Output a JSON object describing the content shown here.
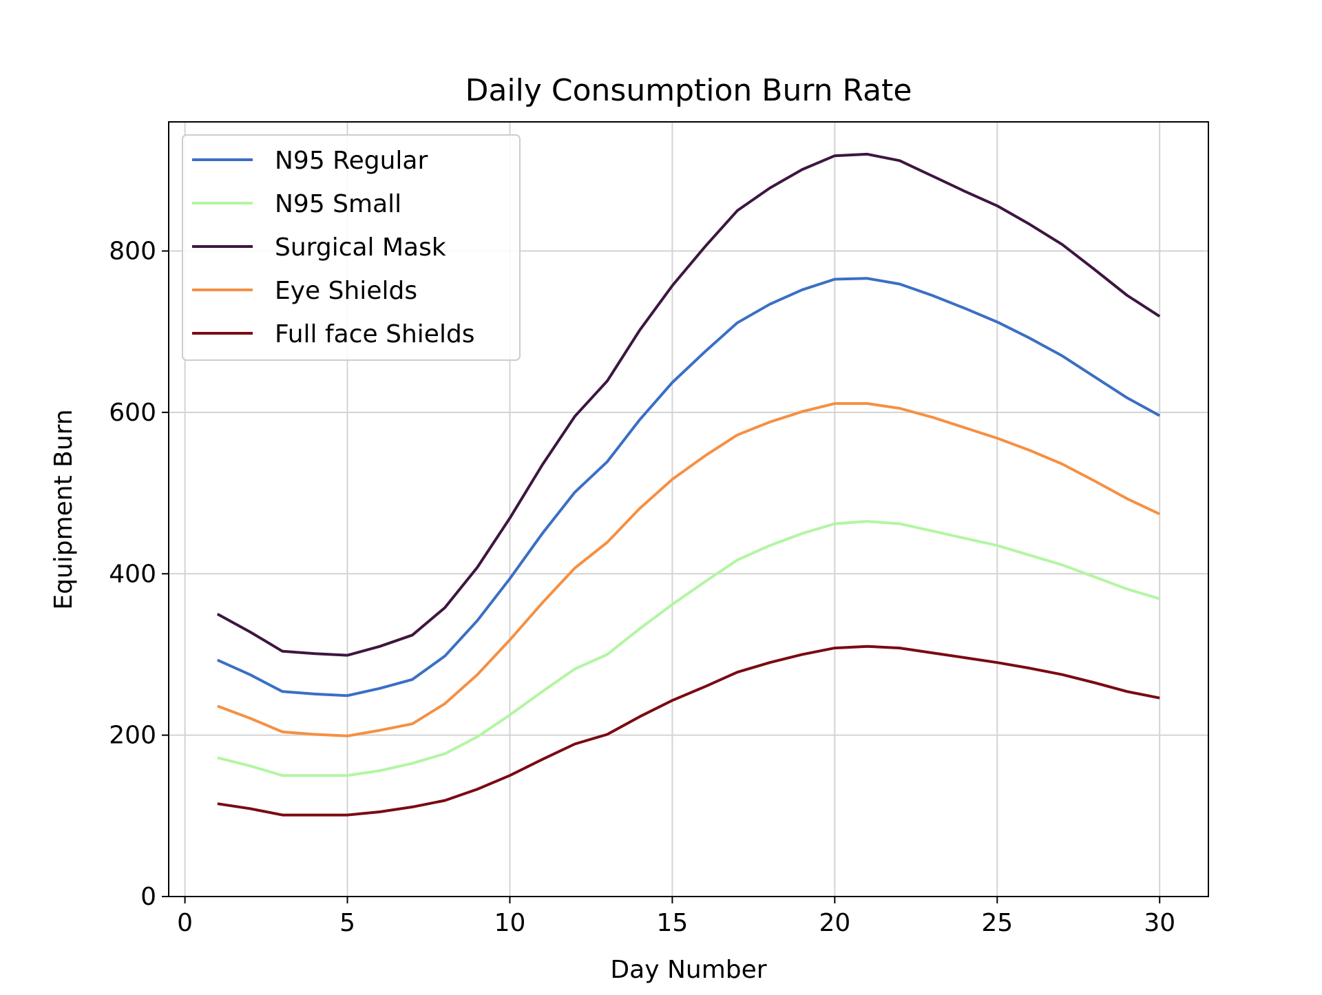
{
  "chart_data": {
    "type": "line",
    "title": "Daily Consumption Burn Rate",
    "xlabel": "Day Number",
    "ylabel": "Equipment Burn",
    "xlim": [
      -0.5,
      31.5
    ],
    "ylim": [
      0,
      960
    ],
    "xticks": [
      0,
      5,
      10,
      15,
      20,
      25,
      30
    ],
    "yticks": [
      0,
      200,
      400,
      600,
      800
    ],
    "grid": true,
    "legend_position": "upper-left",
    "x": [
      1,
      2,
      3,
      4,
      5,
      6,
      7,
      8,
      9,
      10,
      11,
      12,
      13,
      14,
      15,
      16,
      17,
      18,
      19,
      20,
      21,
      22,
      23,
      24,
      25,
      26,
      27,
      28,
      29,
      30
    ],
    "series": [
      {
        "name": "N95 Regular",
        "color": "#3a6fc4",
        "values": [
          293,
          275,
          254,
          251,
          249,
          258,
          269,
          298,
          342,
          394,
          450,
          501,
          539,
          591,
          637,
          675,
          711,
          734,
          752,
          765,
          766,
          759,
          745,
          729,
          712,
          692,
          670,
          644,
          618,
          596
        ]
      },
      {
        "name": "N95 Small",
        "color": "#b3f5a3",
        "values": [
          172,
          162,
          150,
          150,
          150,
          156,
          165,
          177,
          198,
          225,
          254,
          282,
          300,
          332,
          362,
          390,
          417,
          435,
          450,
          462,
          465,
          462,
          453,
          444,
          435,
          423,
          411,
          396,
          381,
          369
        ]
      },
      {
        "name": "Surgical Mask",
        "color": "#3d1640",
        "values": [
          350,
          328,
          304,
          301,
          299,
          310,
          324,
          358,
          408,
          469,
          535,
          595,
          639,
          702,
          757,
          805,
          850,
          878,
          901,
          918,
          920,
          912,
          893,
          874,
          856,
          833,
          808,
          777,
          745,
          719
        ]
      },
      {
        "name": "Eye Shields",
        "color": "#f59043",
        "values": [
          236,
          221,
          204,
          201,
          199,
          206,
          214,
          239,
          275,
          318,
          364,
          407,
          439,
          481,
          517,
          546,
          572,
          588,
          601,
          611,
          611,
          605,
          594,
          581,
          568,
          553,
          536,
          515,
          493,
          474
        ]
      },
      {
        "name": "Full face Shields",
        "color": "#7a0a12",
        "values": [
          115,
          109,
          101,
          101,
          101,
          105,
          111,
          119,
          133,
          150,
          170,
          189,
          201,
          223,
          243,
          260,
          278,
          290,
          300,
          308,
          310,
          308,
          302,
          296,
          290,
          283,
          275,
          265,
          254,
          246
        ]
      }
    ]
  }
}
